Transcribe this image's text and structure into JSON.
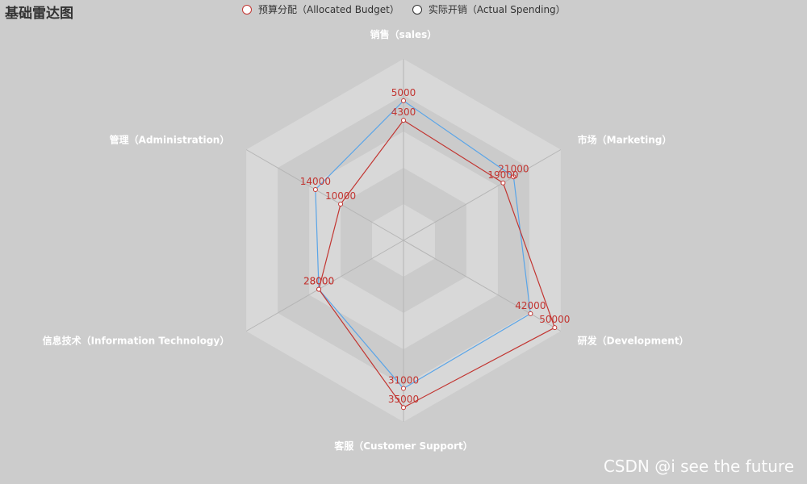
{
  "title": "基础雷达图",
  "legend": {
    "budget_label": "预算分配（Allocated Budget）",
    "actual_label": "实际开销（Actual Spending）"
  },
  "watermark": "CSDN @i see the future",
  "colors": {
    "budget": "#c23531",
    "actual": "#5aa5e8",
    "split_a": "#d8d8d8",
    "split_b": "#cbcbcb",
    "axis_line": "#b5b5b5"
  },
  "chart_data": {
    "type": "radar",
    "title": "基础雷达图",
    "indicators": [
      {
        "name": "销售（sales）",
        "max": 6500
      },
      {
        "name": "市场（Marketing）",
        "max": 30000
      },
      {
        "name": "研发（Development）",
        "max": 52000
      },
      {
        "name": "客服（Customer Support）",
        "max": 38000
      },
      {
        "name": "信息技术（Information Technology）",
        "max": 52000
      },
      {
        "name": "管理（Administration）",
        "max": 25000
      }
    ],
    "series": [
      {
        "name": "预算分配（Allocated Budget）",
        "values": [
          4300,
          19000,
          50000,
          35000,
          28000,
          10000
        ]
      },
      {
        "name": "实际开销（Actual Spending）",
        "values": [
          5000,
          21000,
          42000,
          31000,
          28000,
          14000
        ]
      }
    ],
    "split_number": 5,
    "legend_position": "top-center"
  }
}
